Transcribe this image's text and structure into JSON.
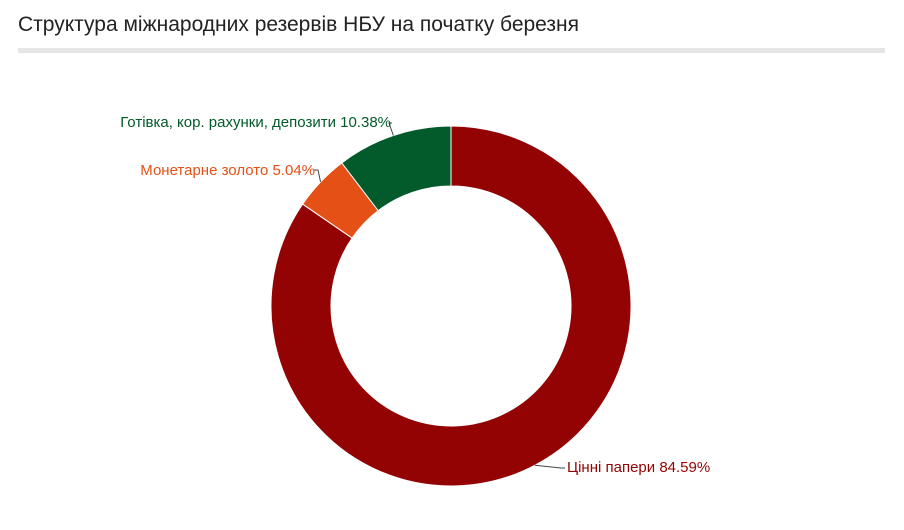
{
  "header": {
    "title": "Структура міжнародних резервів НБУ на початку березня"
  },
  "chart_data": {
    "type": "pie",
    "title": "Структура міжнародних резервів НБУ на початку березня",
    "donut": true,
    "slices": [
      {
        "name": "Цінні папери",
        "value": 84.59,
        "label": "Цінні папери 84.59%",
        "color": "#930304"
      },
      {
        "name": "Монетарне золото",
        "value": 5.04,
        "label": "Монетарне золото 5.04%",
        "color": "#e55017"
      },
      {
        "name": "Готівка, кор. рахунки, депозити",
        "value": 10.38,
        "label": "Готівка, кор. рахунки, депозити 10.38%",
        "color": "#035a2a"
      }
    ],
    "legend": "none"
  }
}
